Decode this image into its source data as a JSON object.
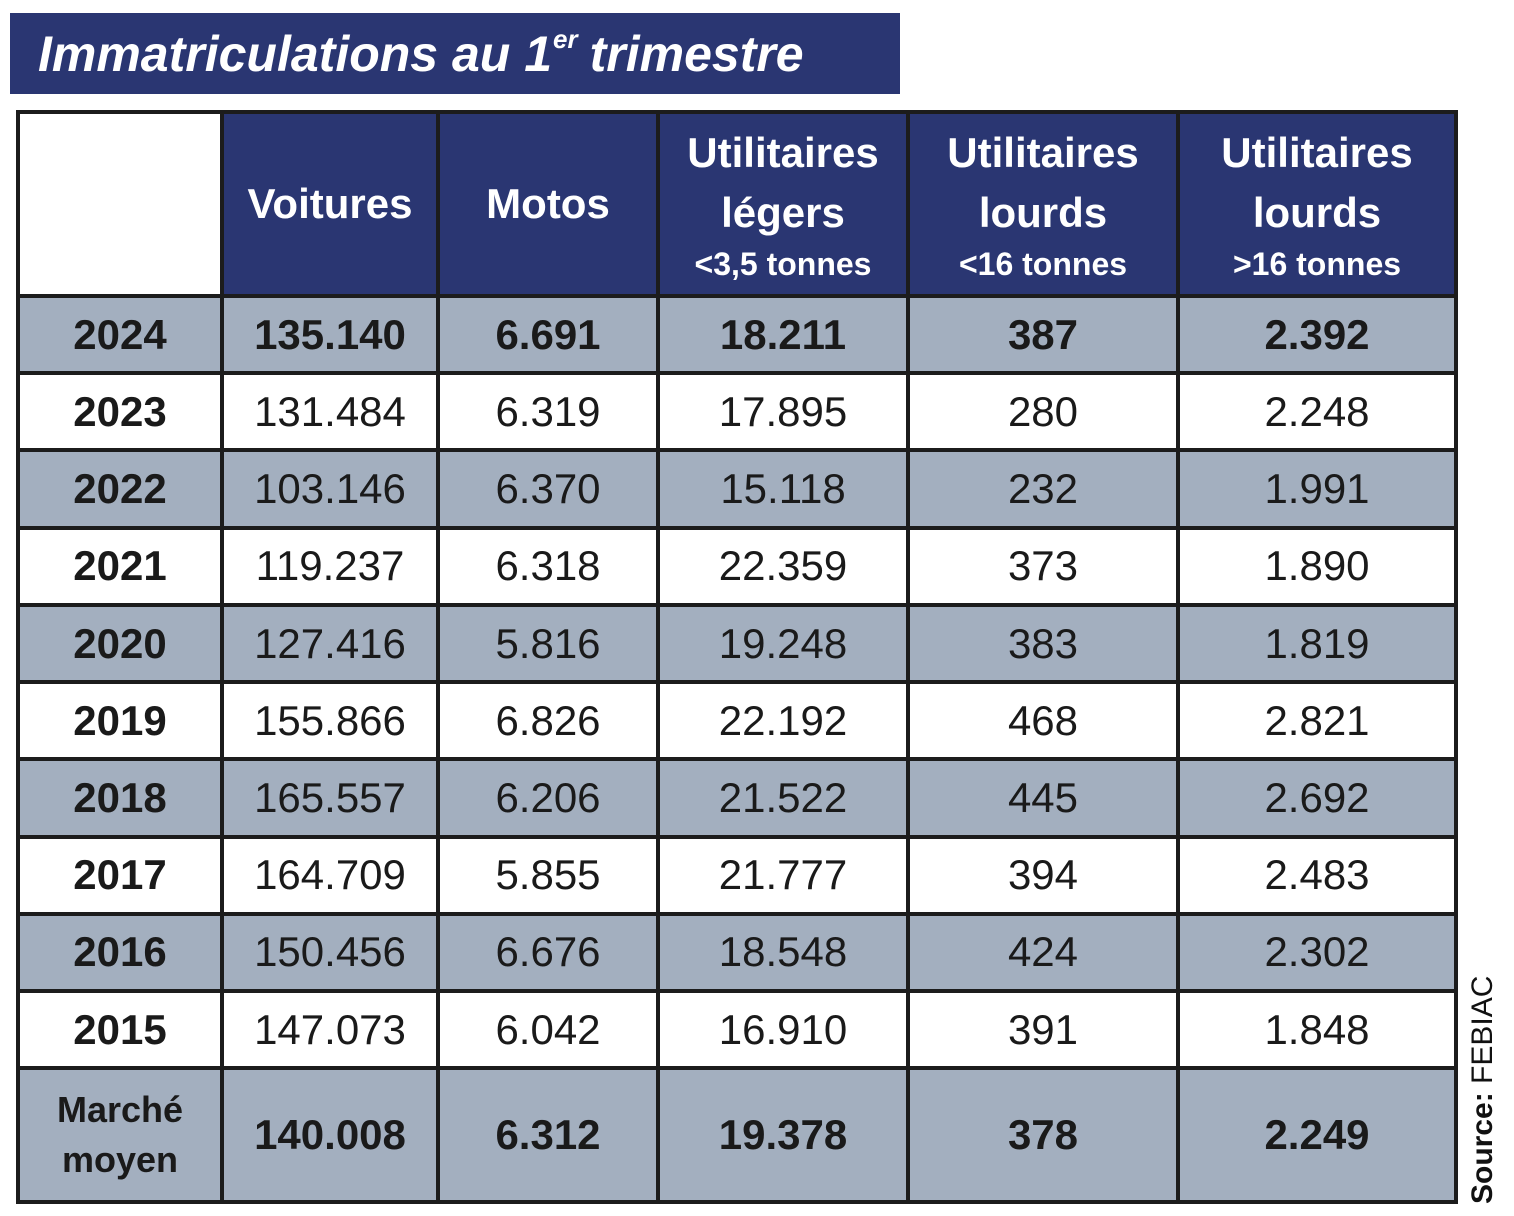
{
  "title": {
    "main": "Immatriculations au 1",
    "sup": "er",
    "rest": "trimestre"
  },
  "colors": {
    "header_bg": "#2a3672",
    "shaded_row": "#a3afbf",
    "border": "#1c1c1c"
  },
  "chart_data": {
    "type": "table",
    "title": "Immatriculations au 1er trimestre",
    "columns": [
      {
        "label": "Voitures",
        "sub": ""
      },
      {
        "label": "Motos",
        "sub": ""
      },
      {
        "label": "Utilitaires légers",
        "sub": "<3,5 tonnes"
      },
      {
        "label": "Utilitaires lourds",
        "sub": "<16 tonnes"
      },
      {
        "label": "Utilitaires lourds",
        "sub": ">16 tonnes"
      }
    ],
    "rows": [
      {
        "year": "2024",
        "values": [
          "135.140",
          "6.691",
          "18.211",
          "387",
          "2.392"
        ]
      },
      {
        "year": "2023",
        "values": [
          "131.484",
          "6.319",
          "17.895",
          "280",
          "2.248"
        ]
      },
      {
        "year": "2022",
        "values": [
          "103.146",
          "6.370",
          "15.118",
          "232",
          "1.991"
        ]
      },
      {
        "year": "2021",
        "values": [
          "119.237",
          "6.318",
          "22.359",
          "373",
          "1.890"
        ]
      },
      {
        "year": "2020",
        "values": [
          "127.416",
          "5.816",
          "19.248",
          "383",
          "1.819"
        ]
      },
      {
        "year": "2019",
        "values": [
          "155.866",
          "6.826",
          "22.192",
          "468",
          "2.821"
        ]
      },
      {
        "year": "2018",
        "values": [
          "165.557",
          "6.206",
          "21.522",
          "445",
          "2.692"
        ]
      },
      {
        "year": "2017",
        "values": [
          "164.709",
          "5.855",
          "21.777",
          "394",
          "2.483"
        ]
      },
      {
        "year": "2016",
        "values": [
          "150.456",
          "6.676",
          "18.548",
          "424",
          "2.302"
        ]
      },
      {
        "year": "2015",
        "values": [
          "147.073",
          "6.042",
          "16.910",
          "391",
          "1.848"
        ]
      }
    ],
    "average": {
      "label_line1": "Marché",
      "label_line2": "moyen",
      "values": [
        "140.008",
        "6.312",
        "19.378",
        "378",
        "2.249"
      ]
    }
  },
  "source": {
    "label": "Source:",
    "name": "FEBIAC"
  }
}
